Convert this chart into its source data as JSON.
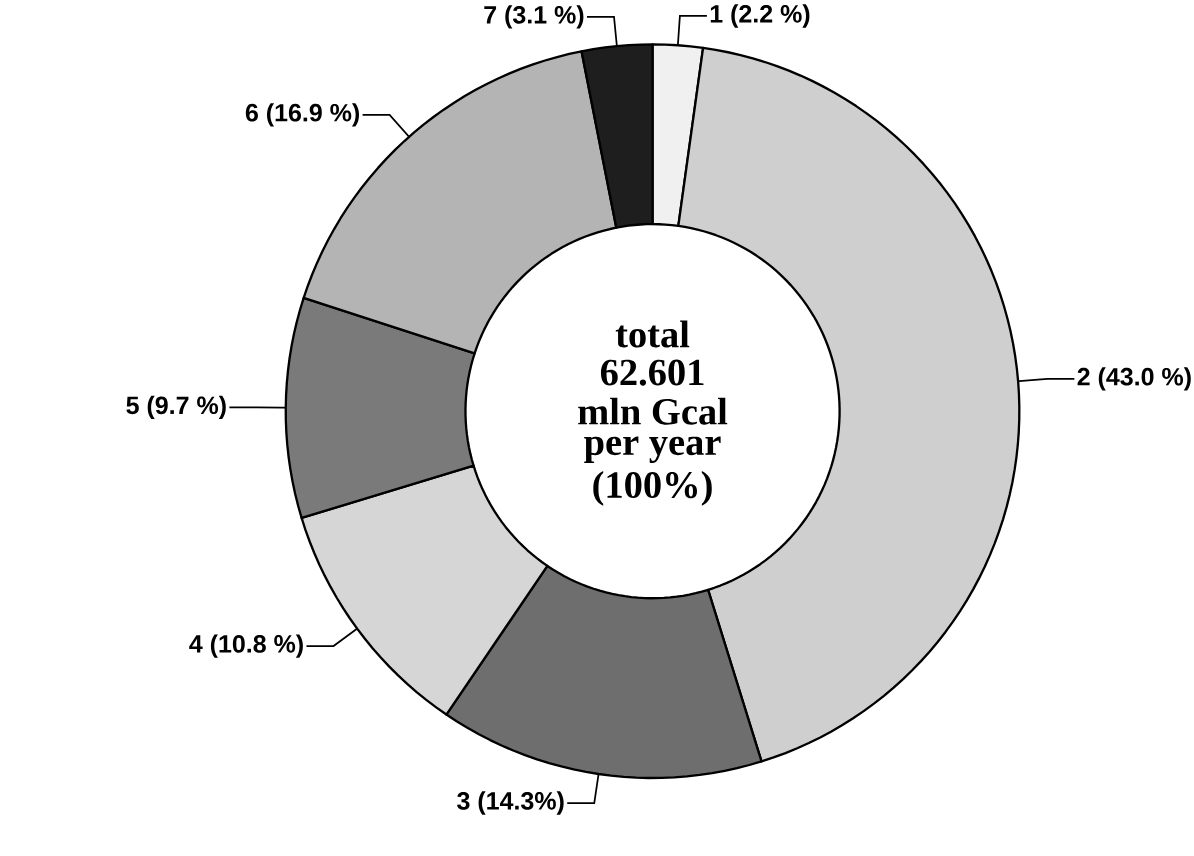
{
  "chart_data": {
    "type": "donut",
    "categories": [
      "1 (2.2 %)",
      "2 (43.0 %)",
      "3 (14.3%)",
      "4 (10.8 %)",
      "5 (9.7 %)",
      "6 (16.9 %)",
      "7 (3.1 %)"
    ],
    "values": [
      2.2,
      43.0,
      14.3,
      10.8,
      9.7,
      16.9,
      3.1
    ],
    "colors": [
      "#f0f0f0",
      "#cfcfcf",
      "#6e6e6e",
      "#d6d6d6",
      "#7a7a7a",
      "#b4b4b4",
      "#1e1e1e"
    ],
    "annotations": [
      "total",
      "62.601",
      "mln Gcal",
      "per  year",
      "(100%)"
    ]
  }
}
